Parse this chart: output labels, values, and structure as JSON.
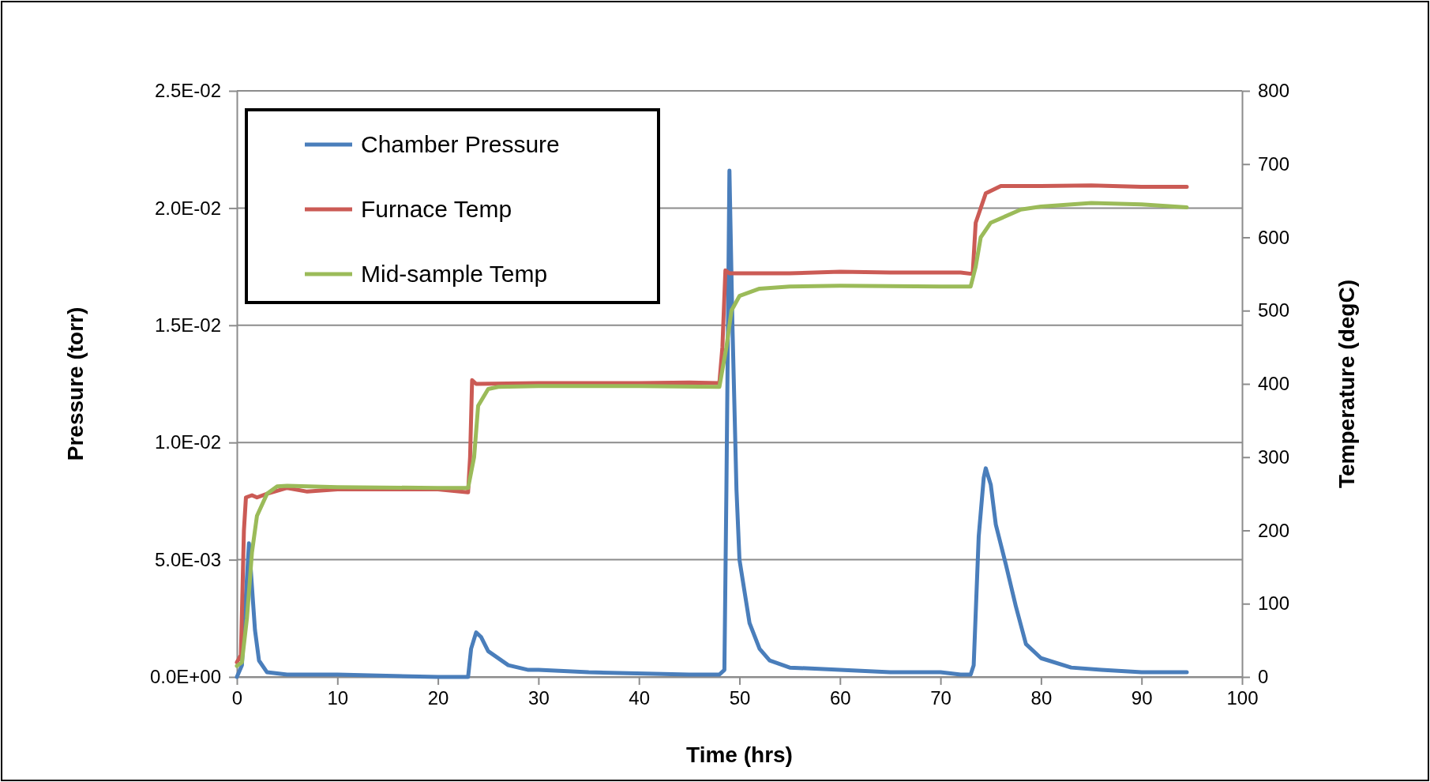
{
  "chart_data": {
    "type": "line",
    "xlabel": "Time (hrs)",
    "ylabel": "Pressure (torr)",
    "y2label": "Temperature (degC)",
    "xlim": [
      0,
      100
    ],
    "xticks": [
      0,
      10,
      20,
      30,
      40,
      50,
      60,
      70,
      80,
      90,
      100
    ],
    "ylim": [
      0,
      0.025
    ],
    "yticks": [
      {
        "value": 0,
        "label": "0.0E+00"
      },
      {
        "value": 0.005,
        "label": "5.0E-03"
      },
      {
        "value": 0.01,
        "label": "1.0E-02"
      },
      {
        "value": 0.015,
        "label": "1.5E-02"
      },
      {
        "value": 0.02,
        "label": "2.0E-02"
      },
      {
        "value": 0.025,
        "label": "2.5E-02"
      }
    ],
    "y2lim": [
      0,
      800
    ],
    "y2ticks": [
      0,
      100,
      200,
      300,
      400,
      500,
      600,
      700,
      800
    ],
    "grid": "y",
    "legend": "top left",
    "marker": "none",
    "line_style": "solid",
    "series": [
      {
        "name": "Chamber Pressure",
        "color": "#4a7ebb",
        "x": [
          0,
          0.5,
          1.2,
          1.8,
          2.2,
          3,
          5,
          10,
          20,
          23,
          23.3,
          23.8,
          24.3,
          25,
          27,
          29,
          30,
          35,
          45,
          47,
          48,
          48.5,
          48.7,
          49,
          49.3,
          49.7,
          50,
          51,
          52,
          53,
          55,
          60,
          65,
          70,
          72,
          73,
          73.3,
          73.8,
          74.3,
          74.5,
          75,
          75.5,
          76.5,
          77.5,
          78.5,
          80,
          83,
          86,
          90,
          94.5
        ],
        "values": [
          0,
          0.0005,
          0.0057,
          0.002,
          0.0007,
          0.0002,
          0.0001,
          0.0001,
          0,
          0,
          0.0012,
          0.0019,
          0.0017,
          0.0011,
          0.0005,
          0.0003,
          0.0003,
          0.0002,
          0.0001,
          0.0001,
          0.0001,
          0.0003,
          0.008,
          0.0216,
          0.015,
          0.008,
          0.005,
          0.0023,
          0.0012,
          0.0007,
          0.0004,
          0.0003,
          0.0002,
          0.0002,
          0.0001,
          0.0001,
          0.0005,
          0.006,
          0.0085,
          0.0089,
          0.0082,
          0.0065,
          0.0048,
          0.003,
          0.0014,
          0.0008,
          0.0004,
          0.0003,
          0.0002,
          0.0002
        ]
      },
      {
        "name": "Furnace Temp",
        "color": "#cb5b55",
        "axis": "y2",
        "x": [
          0,
          0.4,
          0.7,
          0.9,
          1.5,
          2,
          3,
          5,
          7,
          10,
          20,
          23,
          23.2,
          23.4,
          23.8,
          30,
          40,
          45,
          48,
          48.3,
          48.6,
          49,
          55,
          60,
          65,
          72,
          73.2,
          73.5,
          74.5,
          76,
          80,
          85,
          90,
          94.5
        ],
        "values": [
          20,
          30,
          200,
          245,
          248,
          245,
          250,
          258,
          253,
          256,
          256,
          252,
          300,
          405,
          400,
          401,
          401,
          402,
          401,
          450,
          555,
          551,
          551,
          553,
          552,
          552,
          550,
          620,
          660,
          670,
          670,
          671,
          669,
          669
        ]
      },
      {
        "name": "Mid-sample Temp",
        "color": "#9bbb59",
        "axis": "y2",
        "x": [
          0,
          0.5,
          1,
          1.5,
          2,
          3,
          4,
          5,
          10,
          20,
          23,
          23.6,
          24,
          25,
          26,
          30,
          40,
          48,
          48.7,
          49.2,
          50,
          52,
          55,
          60,
          70,
          73,
          73.5,
          74,
          75,
          78,
          80,
          85,
          90,
          94.5
        ],
        "values": [
          15,
          20,
          80,
          170,
          220,
          250,
          260,
          261,
          259,
          258,
          258,
          300,
          370,
          393,
          396,
          397,
          397,
          396,
          450,
          500,
          520,
          530,
          533,
          534,
          533,
          533,
          560,
          600,
          620,
          638,
          642,
          647,
          645,
          641
        ]
      }
    ]
  }
}
